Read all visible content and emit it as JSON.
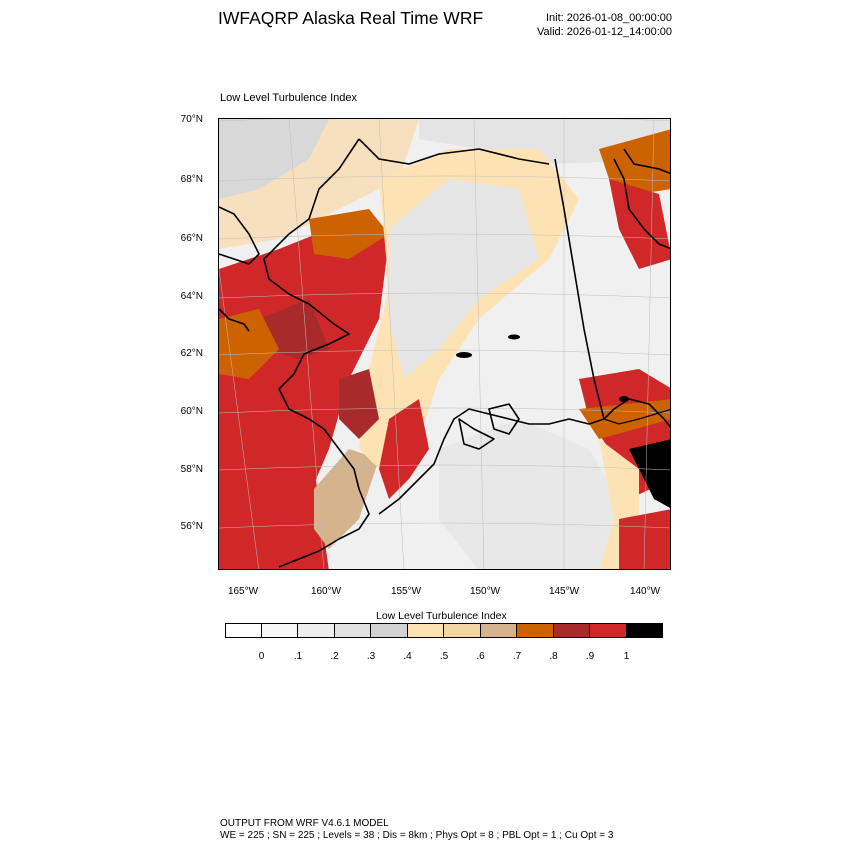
{
  "header": {
    "title": "IWFAQRP Alaska Real Time WRF",
    "init": "Init: 2026-01-08_00:00:00",
    "valid": "Valid: 2026-01-12_14:00:00"
  },
  "plot": {
    "title": "Low Level Turbulence Index"
  },
  "axes": {
    "lat_labels": [
      "70°N",
      "68°N",
      "66°N",
      "64°N",
      "62°N",
      "60°N",
      "58°N",
      "56°N"
    ],
    "lon_labels": [
      "165°W",
      "160°W",
      "155°W",
      "150°W",
      "145°W",
      "140°W"
    ]
  },
  "colorbar": {
    "title": "Low Level Turbulence Index",
    "tick_labels": [
      "0",
      ".1",
      ".2",
      ".3",
      ".4",
      ".5",
      ".6",
      ".7",
      ".8",
      ".9",
      "1"
    ],
    "colors": [
      "#ffffff",
      "#f7f7f7",
      "#eeeeee",
      "#e1e1e1",
      "#d2d2d2",
      "#fde3b3",
      "#f3d5a4",
      "#d5b38d",
      "#cd6300",
      "#a82a2a",
      "#d02828",
      "#000000"
    ]
  },
  "footer": {
    "line1": "OUTPUT FROM WRF V4.6.1 MODEL",
    "line2": "WE = 225 ; SN = 225 ; Levels = 38 ; Dis = 8km ; Phys Opt = 8 ; PBL Opt = 1 ; Cu Opt = 3"
  }
}
